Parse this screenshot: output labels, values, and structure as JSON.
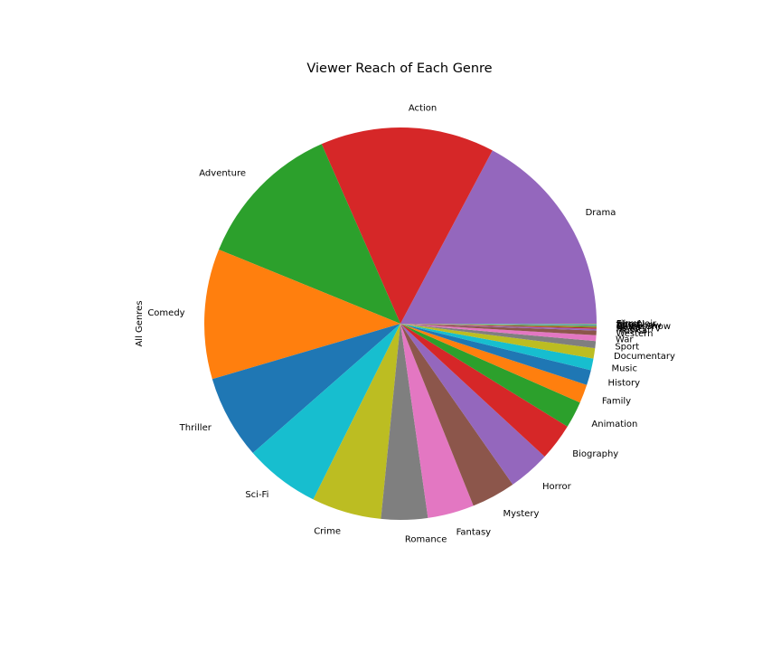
{
  "chart_data": {
    "type": "pie",
    "title": "Viewer Reach of Each Genre",
    "ylabel": "All Genres",
    "start_angle_deg": 0,
    "direction": "counterclockwise",
    "slices": [
      {
        "label": "Drama",
        "value": 18.0,
        "color": "#9467bd"
      },
      {
        "label": "Action",
        "value": 15.0,
        "color": "#d62728"
      },
      {
        "label": "Adventure",
        "value": 12.8,
        "color": "#2ca02c"
      },
      {
        "label": "Comedy",
        "value": 11.2,
        "color": "#ff7f0e"
      },
      {
        "label": "Thriller",
        "value": 7.2,
        "color": "#1f77b4"
      },
      {
        "label": "Sci-Fi",
        "value": 6.5,
        "color": "#17becf"
      },
      {
        "label": "Crime",
        "value": 6.0,
        "color": "#bcbd22"
      },
      {
        "label": "Romance",
        "value": 4.0,
        "color": "#7f7f7f"
      },
      {
        "label": "Fantasy",
        "value": 4.0,
        "color": "#e377c2"
      },
      {
        "label": "Mystery",
        "value": 3.8,
        "color": "#8c564b"
      },
      {
        "label": "Horror",
        "value": 3.6,
        "color": "#9467bd"
      },
      {
        "label": "Biography",
        "value": 3.2,
        "color": "#d62728"
      },
      {
        "label": "Animation",
        "value": 2.3,
        "color": "#2ca02c"
      },
      {
        "label": "Family",
        "value": 1.6,
        "color": "#ff7f0e"
      },
      {
        "label": "History",
        "value": 1.3,
        "color": "#1f77b4"
      },
      {
        "label": "Music",
        "value": 1.0,
        "color": "#17becf"
      },
      {
        "label": "Documentary",
        "value": 0.9,
        "color": "#bcbd22"
      },
      {
        "label": "Sport",
        "value": 0.6,
        "color": "#7f7f7f"
      },
      {
        "label": "War",
        "value": 0.5,
        "color": "#e377c2"
      },
      {
        "label": "Western",
        "value": 0.4,
        "color": "#8c564b"
      },
      {
        "label": "Musical",
        "value": 0.15,
        "color": "#9467bd"
      },
      {
        "label": "Reality-TV",
        "value": 0.1,
        "color": "#d62728"
      },
      {
        "label": "News",
        "value": 0.08,
        "color": "#2ca02c"
      },
      {
        "label": "Game-Show",
        "value": 0.07,
        "color": "#ff7f0e"
      },
      {
        "label": "Talk-Show",
        "value": 0.06,
        "color": "#1f77b4"
      },
      {
        "label": "Adult",
        "value": 0.05,
        "color": "#17becf"
      },
      {
        "label": "Short",
        "value": 0.04,
        "color": "#bcbd22"
      },
      {
        "label": "Film-Noir",
        "value": 0.03,
        "color": "#7f7f7f"
      }
    ]
  }
}
